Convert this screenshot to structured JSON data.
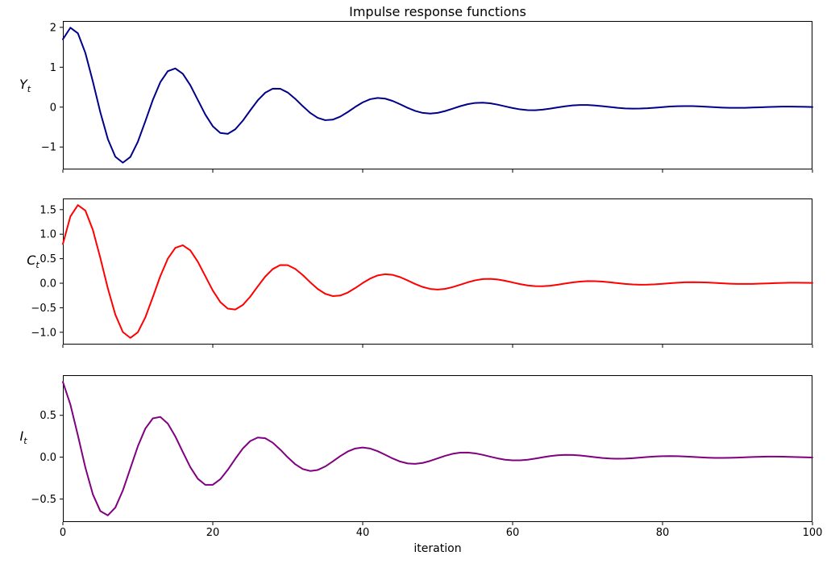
{
  "figure": {
    "title": "Impulse response functions",
    "xlabel": "iteration",
    "background_color": "#ffffff",
    "axes_edge_color": "#000000",
    "tick_color": "#000000"
  },
  "chart_data": {
    "type": "line",
    "title": "Impulse response functions",
    "xlabel": "iteration",
    "grid": false,
    "legend": "none",
    "xlim": [
      0,
      100
    ],
    "xticks": [
      0,
      20,
      40,
      60,
      80,
      100
    ],
    "xtick_labels": [
      "0",
      "20",
      "40",
      "60",
      "80",
      "100"
    ],
    "x": [
      0,
      1,
      2,
      3,
      4,
      5,
      6,
      7,
      8,
      9,
      10,
      11,
      12,
      13,
      14,
      15,
      16,
      17,
      18,
      19,
      20,
      21,
      22,
      23,
      24,
      25,
      26,
      27,
      28,
      29,
      30,
      31,
      32,
      33,
      34,
      35,
      36,
      37,
      38,
      39,
      40,
      41,
      42,
      43,
      44,
      45,
      46,
      47,
      48,
      49,
      50,
      51,
      52,
      53,
      54,
      55,
      56,
      57,
      58,
      59,
      60,
      61,
      62,
      63,
      64,
      65,
      66,
      67,
      68,
      69,
      70,
      71,
      72,
      73,
      74,
      75,
      76,
      77,
      78,
      79,
      80,
      81,
      82,
      83,
      84,
      85,
      86,
      87,
      88,
      89,
      90,
      91,
      92,
      93,
      94,
      95,
      96,
      97,
      98,
      99,
      100
    ],
    "subplots": [
      {
        "name": "Y_t",
        "ylabel_base": "Y",
        "ylabel_sub": "t",
        "color": "#00008B",
        "ylim": [
          -1.56214,
          2.15915
        ],
        "yticks": [
          2,
          1,
          0,
          -1
        ],
        "ytick_labels": [
          "2",
          "1",
          "0",
          "−1"
        ],
        "values": [
          1.7,
          1.99,
          1.853,
          1.3591,
          0.64277,
          -0.13048,
          -0.80031,
          -1.2431,
          -1.39299,
          -1.24929,
          -0.8701,
          -0.35481,
          0.17991,
          0.62518,
          0.90089,
          0.96885,
          0.83625,
          0.54966,
          0.18179,
          -0.18565,
          -0.47922,
          -0.64758,
          -0.66959,
          -0.55548,
          -0.34169,
          -0.08094,
          0.16992,
          0.36171,
          0.46198,
          0.45983,
          0.36593,
          0.20823,
          0.02465,
          -0.1455,
          -0.26954,
          -0.32727,
          -0.31377,
          -0.23887,
          -0.12369,
          0.00471,
          0.11933,
          0.19862,
          0.23025,
          0.21267,
          0.15431,
          0.07093,
          -0.0183,
          -0.09495,
          -0.14495,
          -0.16096,
          -0.14317,
          -0.09853,
          -0.03865,
          0.02297,
          0.07384,
          0.10486,
          0.1118,
          0.09569,
          0.06205,
          0.01937,
          -0.02292,
          -0.05639,
          -0.07523,
          -0.07714,
          -0.06343,
          -0.0384,
          -0.00819,
          0.02064,
          0.04246,
          0.0536,
          0.05291,
          0.04171,
          0.02329,
          0.00205,
          -0.01747,
          -0.03155,
          -0.03792,
          -0.03606,
          -0.02717,
          -0.01374,
          0.00109,
          0.01422,
          0.02319,
          0.02662,
          0.02438,
          0.01749,
          0.00779,
          -0.0025,
          -0.01126,
          -0.01689,
          -0.01858,
          -0.01639,
          -0.01114,
          -0.00419,
          0.00291,
          0.00872,
          0.0122,
          0.01289,
          0.01093,
          0.00698,
          0.00203
        ]
      },
      {
        "name": "C_t",
        "ylabel_base": "C",
        "ylabel_sub": "t",
        "color": "#FF0000",
        "ylim": [
          -1.24971,
          1.72732
        ],
        "yticks": [
          1.5,
          1.0,
          0.5,
          0.0,
          -0.5,
          -1.0
        ],
        "ytick_labels": [
          "1.5",
          "1.0",
          "0.5",
          "0.0",
          "−0.5",
          "−1.0"
        ],
        "values": [
          0.8,
          1.36,
          1.592,
          1.4824,
          1.08728,
          0.51422,
          -0.10438,
          -0.64025,
          -0.99448,
          -1.11439,
          -0.99943,
          -0.69608,
          -0.28385,
          0.14393,
          0.50014,
          0.72071,
          0.77508,
          0.669,
          0.43973,
          0.14543,
          -0.14852,
          -0.38338,
          -0.51806,
          -0.53567,
          -0.44438,
          -0.27335,
          -0.06475,
          0.13594,
          0.28937,
          0.36958,
          0.36786,
          0.29274,
          0.16658,
          0.01972,
          -0.1164,
          -0.21563,
          -0.26182,
          -0.25102,
          -0.1911,
          -0.09895,
          0.00377,
          0.09546,
          0.1589,
          0.1842,
          0.17014,
          0.12345,
          0.05674,
          -0.01464,
          -0.07596,
          -0.11596,
          -0.12877,
          -0.11454,
          -0.07882,
          -0.03092,
          0.01838,
          0.05907,
          0.08389,
          0.08944,
          0.07655,
          0.04964,
          0.0155,
          -0.01834,
          -0.04511,
          -0.06018,
          -0.06171,
          -0.05074,
          -0.03072,
          -0.00655,
          0.01651,
          0.03397,
          0.04288,
          0.04233,
          0.03337,
          0.01863,
          0.00164,
          -0.01398,
          -0.02524,
          -0.03034,
          -0.02885,
          -0.02174,
          -0.01099,
          0.00087,
          0.01138,
          0.01855,
          0.0213,
          0.0195,
          0.01399,
          0.00623,
          -0.002,
          -0.00901,
          -0.01351,
          -0.01486,
          -0.01311,
          -0.00891,
          -0.00335,
          0.00233,
          0.00698,
          0.00976,
          0.01031,
          0.00874,
          0.00558
        ]
      },
      {
        "name": "I_t",
        "ylabel_base": "I",
        "ylabel_sub": "t",
        "color": "#800080",
        "ylim": [
          -0.77573,
          0.9798
        ],
        "yticks": [
          0.5,
          0.0,
          -0.5
        ],
        "ytick_labels": [
          "0.5",
          "0.0",
          "−0.5"
        ],
        "values": [
          0.9,
          0.63,
          0.261,
          -0.1233,
          -0.44451,
          -0.6447,
          -0.69593,
          -0.60285,
          -0.39851,
          -0.1349,
          0.12933,
          0.34127,
          0.46376,
          0.48125,
          0.40074,
          0.24814,
          0.06116,
          -0.11934,
          -0.25793,
          -0.33108,
          -0.3307,
          -0.26421,
          -0.15152,
          -0.01981,
          0.1027,
          0.19241,
          0.23468,
          0.22577,
          0.17261,
          0.09024,
          -0.00194,
          -0.08451,
          -0.14193,
          -0.16522,
          -0.15314,
          -0.11164,
          -0.05196,
          0.01215,
          0.06741,
          0.10366,
          0.11556,
          0.10316,
          0.07136,
          0.02847,
          -0.01582,
          -0.05252,
          -0.07504,
          -0.08031,
          -0.06899,
          -0.045,
          -0.01441,
          0.01601,
          0.04018,
          0.05389,
          0.05546,
          0.04578,
          0.02792,
          0.00625,
          -0.0145,
          -0.03028,
          -0.03841,
          -0.03806,
          -0.03012,
          -0.01696,
          -0.00172,
          0.01234,
          0.02253,
          0.02719,
          0.02595,
          0.01964,
          0.01003,
          -0.00062,
          -0.01008,
          -0.01658,
          -0.01912,
          -0.01757,
          -0.01267,
          -0.00573,
          0.00167,
          0.008,
          0.01209,
          0.01335,
          0.01182,
          0.00807,
          0.00309,
          -0.00202,
          -0.0062,
          -0.00873,
          -0.00926,
          -0.00788,
          -0.00507,
          -0.00152,
          0.00197,
          0.00473,
          0.00626,
          0.00639,
          0.00523,
          0.00313,
          0.00062,
          -0.00176,
          -0.00356
        ]
      }
    ]
  }
}
